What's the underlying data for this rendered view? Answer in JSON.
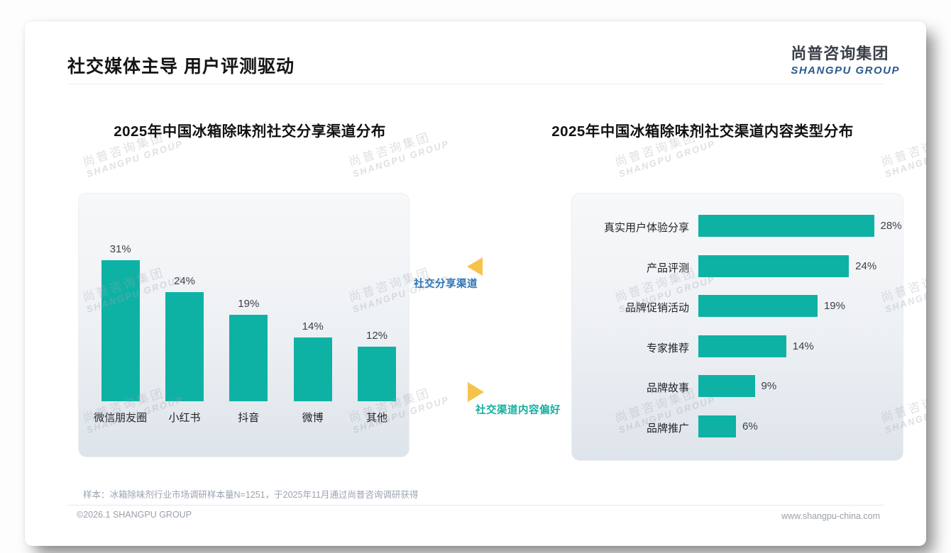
{
  "header": {
    "title": "社交媒体主导 用户评测驱动",
    "logo_cn": "尚普咨询集团",
    "logo_en": "SHANGPU GROUP"
  },
  "watermark": {
    "line1": "尚普咨询集团",
    "line2": "SHANGPU GROUP"
  },
  "annotations": {
    "share_channel": "社交分享渠道",
    "content_preference": "社交渠道内容偏好"
  },
  "colors": {
    "bar_teal": "#0eb2a4",
    "triangle_orange": "#f6c34a",
    "share_label_blue": "#2e74b5",
    "pref_label_teal": "#13b0a0",
    "logo_blue": "#2b5a8c"
  },
  "chart_data": [
    {
      "type": "bar",
      "title": "2025年中国冰箱除味剂社交分享渠道分布",
      "categories": [
        "微信朋友圈",
        "小红书",
        "抖音",
        "微博",
        "其他"
      ],
      "values": [
        31,
        24,
        19,
        14,
        12
      ],
      "unit": "%",
      "bar_color": "#0eb2a4",
      "value_labels": [
        "31%",
        "24%",
        "19%",
        "14%",
        "12%"
      ],
      "ylim": [
        0,
        35
      ],
      "grid": false,
      "legend": "none"
    },
    {
      "type": "bar-horizontal",
      "title": "2025年中国冰箱除味剂社交渠道内容类型分布",
      "categories": [
        "真实用户体验分享",
        "产品评测",
        "品牌促销活动",
        "专家推荐",
        "品牌故事",
        "品牌推广"
      ],
      "values": [
        28,
        24,
        19,
        14,
        9,
        6
      ],
      "unit": "%",
      "bar_color": "#0eb2a4",
      "value_labels": [
        "28%",
        "24%",
        "19%",
        "14%",
        "9%",
        "6%"
      ],
      "xlim": [
        0,
        30
      ],
      "grid": false,
      "legend": "none"
    }
  ],
  "footer": {
    "note": "样本：冰箱除味剂行业市场调研样本量N=1251，于2025年11月通过尚普咨询调研获得",
    "copyright": "©2026.1 SHANGPU GROUP",
    "website": "www.shangpu-china.com"
  }
}
